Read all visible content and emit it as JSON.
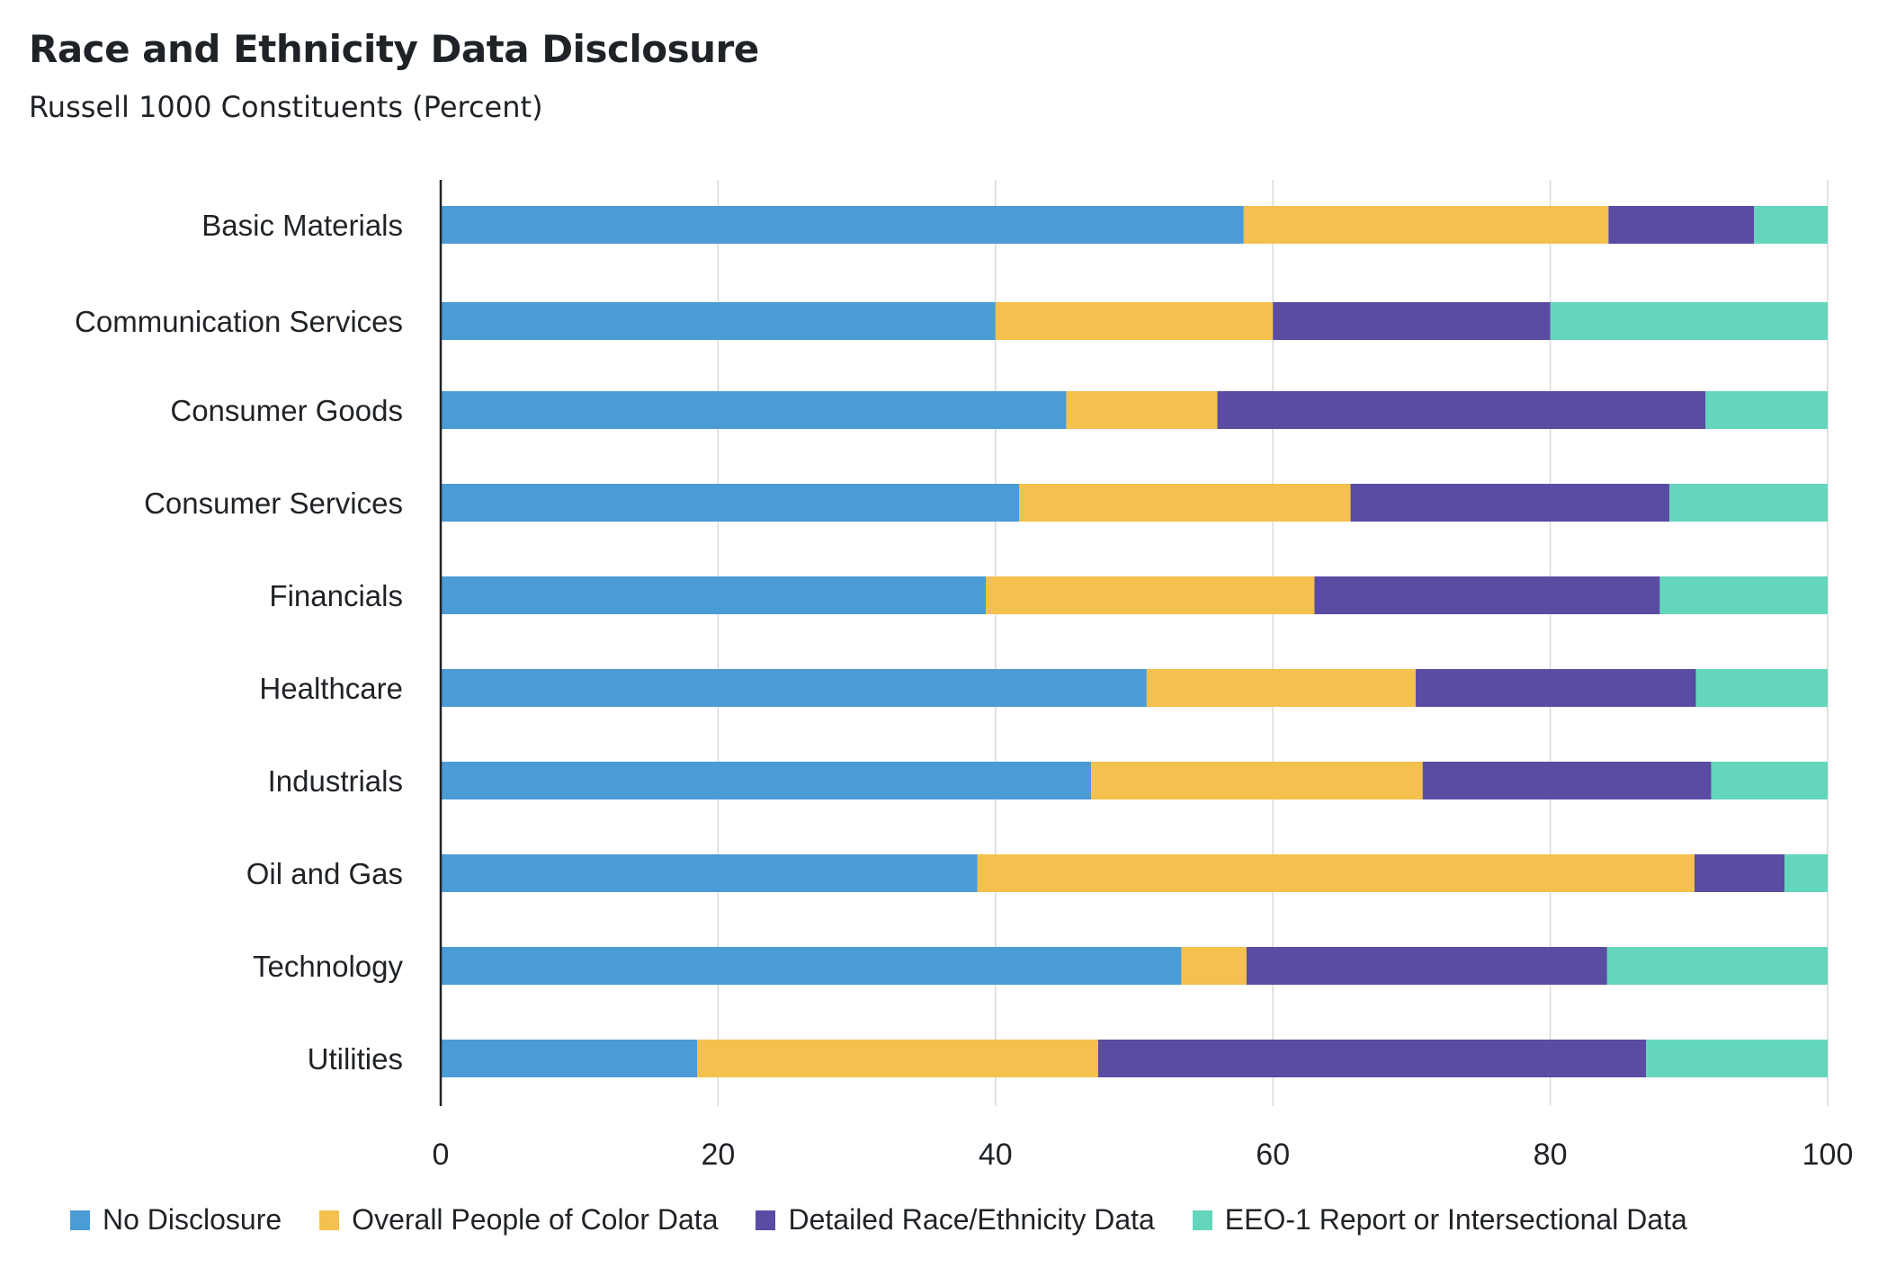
{
  "title": "Race and Ethnicity Data Disclosure",
  "subtitle": "Russell 1000 Constituents (Percent)",
  "chart_data": {
    "type": "bar",
    "orientation": "horizontal",
    "stacked": true,
    "title": "Race and Ethnicity Data Disclosure",
    "subtitle": "Russell 1000 Constituents (Percent)",
    "xlabel": "",
    "ylabel": "",
    "xlim": [
      0,
      100
    ],
    "xticks": [
      0,
      20,
      40,
      60,
      80,
      100
    ],
    "grid": "vertical",
    "legend_position": "bottom",
    "categories": [
      "Basic Materials",
      "Communication Services",
      "Consumer Goods",
      "Consumer Services",
      "Financials",
      "Healthcare",
      "Industrials",
      "Oil and Gas",
      "Technology",
      "Utilities"
    ],
    "series": [
      {
        "name": "No Disclosure",
        "color": "#4b9bd5",
        "values": [
          57.9,
          40.0,
          45.1,
          41.7,
          39.3,
          50.9,
          46.9,
          38.7,
          53.4,
          18.5
        ]
      },
      {
        "name": "Overall People of Color Data",
        "color": "#f4c04e",
        "values": [
          26.3,
          20.0,
          10.9,
          23.9,
          23.7,
          19.4,
          23.9,
          51.7,
          4.7,
          28.9
        ]
      },
      {
        "name": "Detailed Race/Ethnicity Data",
        "color": "#5a4ba3",
        "values": [
          10.5,
          20.0,
          35.2,
          23.0,
          24.9,
          20.2,
          20.8,
          6.5,
          26.0,
          39.5
        ]
      },
      {
        "name": "EEO-1 Report or Intersectional Data",
        "color": "#64d6bd",
        "values": [
          5.3,
          20.0,
          8.8,
          11.4,
          12.1,
          9.5,
          8.4,
          3.1,
          15.9,
          13.1
        ]
      }
    ]
  }
}
